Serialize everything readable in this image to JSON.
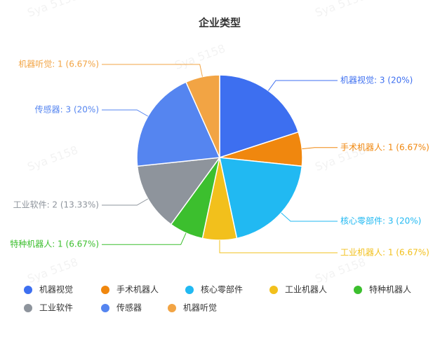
{
  "chart_data": {
    "type": "pie",
    "title": "企业类型",
    "watermark": "Sya 5158",
    "categories": [
      "机器视觉",
      "手术机器人",
      "核心零部件",
      "工业机器人",
      "特种机器人",
      "工业软件",
      "传感器",
      "机器听觉"
    ],
    "values": [
      3,
      1,
      3,
      1,
      1,
      2,
      3,
      1
    ],
    "value_labels": [
      "机器视觉: 3 (20%)",
      "手术机器人: 1 (6.67%)",
      "核心零部件: 3 (20%)",
      "工业机器人: 1 (6.67%)",
      "特种机器人: 1 (6.67%)",
      "工业软件: 2 (13.33%)",
      "传感器: 3 (20%)",
      "机器听觉: 1 (6.67%)"
    ],
    "colors": [
      "#3d6ff0",
      "#f0870e",
      "#21b9f2",
      "#f2c01c",
      "#3cbf2e",
      "#8e949c",
      "#5585f0",
      "#f2a444"
    ]
  }
}
